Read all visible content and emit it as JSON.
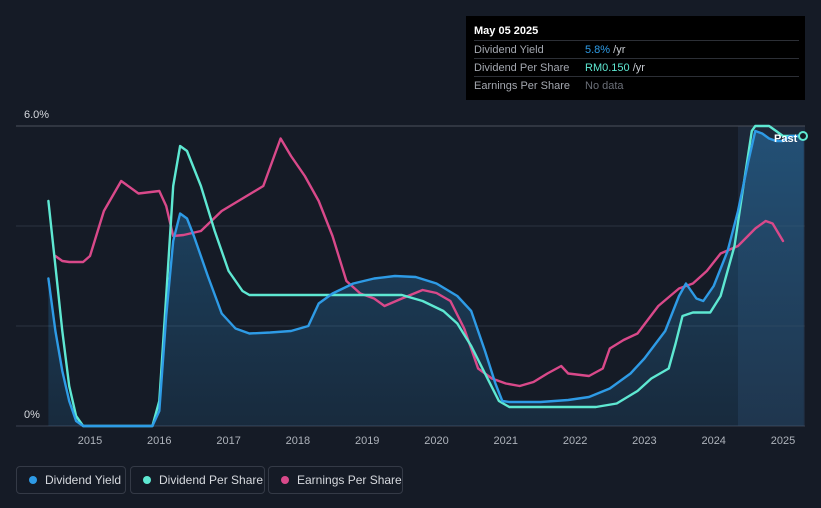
{
  "tooltip": {
    "date": "May 05 2025",
    "rows": [
      {
        "label": "Dividend Yield",
        "value": "5.8%",
        "unit": " /yr"
      },
      {
        "label": "Dividend Per Share",
        "value": "RM0.150",
        "unit": " /yr"
      },
      {
        "label": "Earnings Per Share",
        "value": "No data",
        "unit": ""
      }
    ]
  },
  "legend": [
    {
      "label": "Dividend Yield",
      "color": "#2e9be6"
    },
    {
      "label": "Dividend Per Share",
      "color": "#5ee8d2"
    },
    {
      "label": "Earnings Per Share",
      "color": "#d9498a"
    }
  ],
  "past_label": "Past",
  "chart_data": {
    "type": "line",
    "y_ticks": [
      "6.0%",
      "0%"
    ],
    "ylim": [
      0,
      6
    ],
    "xlim": [
      2014.4,
      2025.3
    ],
    "x_ticks": [
      "2015",
      "2016",
      "2017",
      "2018",
      "2019",
      "2020",
      "2021",
      "2022",
      "2023",
      "2024",
      "2025"
    ],
    "x_tick_values": [
      2015,
      2016,
      2017,
      2018,
      2019,
      2020,
      2021,
      2022,
      2023,
      2024,
      2025
    ],
    "grid": true,
    "past_region_start": 2024.35,
    "series": [
      {
        "name": "Dividend Yield",
        "color": "#2e9be6",
        "filled": true,
        "points": [
          [
            2014.4,
            2.95
          ],
          [
            2014.5,
            1.9
          ],
          [
            2014.6,
            1.1
          ],
          [
            2014.7,
            0.5
          ],
          [
            2014.8,
            0.1
          ],
          [
            2014.9,
            0.0
          ],
          [
            2015.9,
            0.0
          ],
          [
            2016.0,
            0.3
          ],
          [
            2016.1,
            2.2
          ],
          [
            2016.2,
            3.7
          ],
          [
            2016.3,
            4.25
          ],
          [
            2016.4,
            4.15
          ],
          [
            2016.5,
            3.8
          ],
          [
            2016.7,
            3.0
          ],
          [
            2016.9,
            2.25
          ],
          [
            2017.1,
            1.95
          ],
          [
            2017.3,
            1.85
          ],
          [
            2017.6,
            1.87
          ],
          [
            2017.9,
            1.9
          ],
          [
            2018.15,
            2.0
          ],
          [
            2018.3,
            2.45
          ],
          [
            2018.5,
            2.65
          ],
          [
            2018.8,
            2.85
          ],
          [
            2019.1,
            2.95
          ],
          [
            2019.4,
            3.0
          ],
          [
            2019.7,
            2.98
          ],
          [
            2020.0,
            2.85
          ],
          [
            2020.3,
            2.6
          ],
          [
            2020.5,
            2.3
          ],
          [
            2020.7,
            1.5
          ],
          [
            2020.85,
            0.85
          ],
          [
            2020.95,
            0.5
          ],
          [
            2021.05,
            0.48
          ],
          [
            2021.5,
            0.48
          ],
          [
            2021.9,
            0.52
          ],
          [
            2022.2,
            0.58
          ],
          [
            2022.5,
            0.75
          ],
          [
            2022.8,
            1.05
          ],
          [
            2023.0,
            1.35
          ],
          [
            2023.3,
            1.9
          ],
          [
            2023.5,
            2.6
          ],
          [
            2023.6,
            2.85
          ],
          [
            2023.75,
            2.55
          ],
          [
            2023.85,
            2.5
          ],
          [
            2024.0,
            2.8
          ],
          [
            2024.2,
            3.5
          ],
          [
            2024.35,
            4.3
          ],
          [
            2024.5,
            5.3
          ],
          [
            2024.6,
            5.9
          ],
          [
            2024.7,
            5.85
          ],
          [
            2024.8,
            5.75
          ],
          [
            2024.9,
            5.7
          ],
          [
            2025.0,
            5.7
          ],
          [
            2025.1,
            5.8
          ],
          [
            2025.3,
            5.8
          ]
        ]
      },
      {
        "name": "Dividend Per Share",
        "color": "#5ee8d2",
        "filled": false,
        "points": [
          [
            2014.4,
            4.5
          ],
          [
            2014.5,
            3.2
          ],
          [
            2014.6,
            1.9
          ],
          [
            2014.7,
            0.8
          ],
          [
            2014.8,
            0.2
          ],
          [
            2014.9,
            0.0
          ],
          [
            2015.9,
            0.0
          ],
          [
            2016.0,
            0.5
          ],
          [
            2016.1,
            2.6
          ],
          [
            2016.2,
            4.8
          ],
          [
            2016.3,
            5.6
          ],
          [
            2016.4,
            5.5
          ],
          [
            2016.6,
            4.8
          ],
          [
            2016.8,
            3.9
          ],
          [
            2017.0,
            3.1
          ],
          [
            2017.2,
            2.7
          ],
          [
            2017.3,
            2.62
          ],
          [
            2017.5,
            2.62
          ],
          [
            2019.5,
            2.62
          ],
          [
            2019.8,
            2.5
          ],
          [
            2020.1,
            2.3
          ],
          [
            2020.3,
            2.05
          ],
          [
            2020.5,
            1.6
          ],
          [
            2020.7,
            1.05
          ],
          [
            2020.9,
            0.5
          ],
          [
            2021.05,
            0.38
          ],
          [
            2022.3,
            0.38
          ],
          [
            2022.6,
            0.45
          ],
          [
            2022.9,
            0.7
          ],
          [
            2023.1,
            0.95
          ],
          [
            2023.35,
            1.15
          ],
          [
            2023.45,
            1.65
          ],
          [
            2023.55,
            2.2
          ],
          [
            2023.7,
            2.27
          ],
          [
            2023.95,
            2.27
          ],
          [
            2024.1,
            2.6
          ],
          [
            2024.3,
            3.6
          ],
          [
            2024.45,
            5.0
          ],
          [
            2024.55,
            5.9
          ],
          [
            2024.6,
            6.0
          ],
          [
            2024.8,
            6.0
          ],
          [
            2024.9,
            5.9
          ],
          [
            2025.0,
            5.8
          ],
          [
            2025.3,
            5.8
          ]
        ]
      },
      {
        "name": "Earnings Per Share",
        "color": "#d9498a",
        "filled": false,
        "points": [
          [
            2014.5,
            3.4
          ],
          [
            2014.6,
            3.3
          ],
          [
            2014.7,
            3.28
          ],
          [
            2014.9,
            3.28
          ],
          [
            2015.0,
            3.4
          ],
          [
            2015.2,
            4.3
          ],
          [
            2015.45,
            4.9
          ],
          [
            2015.7,
            4.65
          ],
          [
            2016.0,
            4.7
          ],
          [
            2016.1,
            4.4
          ],
          [
            2016.2,
            3.8
          ],
          [
            2016.35,
            3.82
          ],
          [
            2016.6,
            3.9
          ],
          [
            2016.9,
            4.3
          ],
          [
            2017.2,
            4.55
          ],
          [
            2017.5,
            4.8
          ],
          [
            2017.75,
            5.75
          ],
          [
            2017.9,
            5.4
          ],
          [
            2018.1,
            5.0
          ],
          [
            2018.3,
            4.5
          ],
          [
            2018.5,
            3.8
          ],
          [
            2018.7,
            2.9
          ],
          [
            2018.9,
            2.65
          ],
          [
            2019.1,
            2.55
          ],
          [
            2019.25,
            2.4
          ],
          [
            2019.5,
            2.55
          ],
          [
            2019.8,
            2.72
          ],
          [
            2020.0,
            2.66
          ],
          [
            2020.2,
            2.5
          ],
          [
            2020.4,
            1.95
          ],
          [
            2020.6,
            1.15
          ],
          [
            2020.8,
            0.95
          ],
          [
            2021.0,
            0.85
          ],
          [
            2021.2,
            0.8
          ],
          [
            2021.4,
            0.88
          ],
          [
            2021.6,
            1.05
          ],
          [
            2021.8,
            1.2
          ],
          [
            2021.9,
            1.05
          ],
          [
            2022.2,
            1.0
          ],
          [
            2022.4,
            1.15
          ],
          [
            2022.5,
            1.55
          ],
          [
            2022.7,
            1.72
          ],
          [
            2022.9,
            1.85
          ],
          [
            2023.2,
            2.4
          ],
          [
            2023.5,
            2.75
          ],
          [
            2023.7,
            2.85
          ],
          [
            2023.9,
            3.1
          ],
          [
            2024.1,
            3.45
          ],
          [
            2024.35,
            3.6
          ],
          [
            2024.6,
            3.95
          ],
          [
            2024.75,
            4.1
          ],
          [
            2024.85,
            4.05
          ],
          [
            2025.0,
            3.7
          ]
        ]
      }
    ]
  }
}
